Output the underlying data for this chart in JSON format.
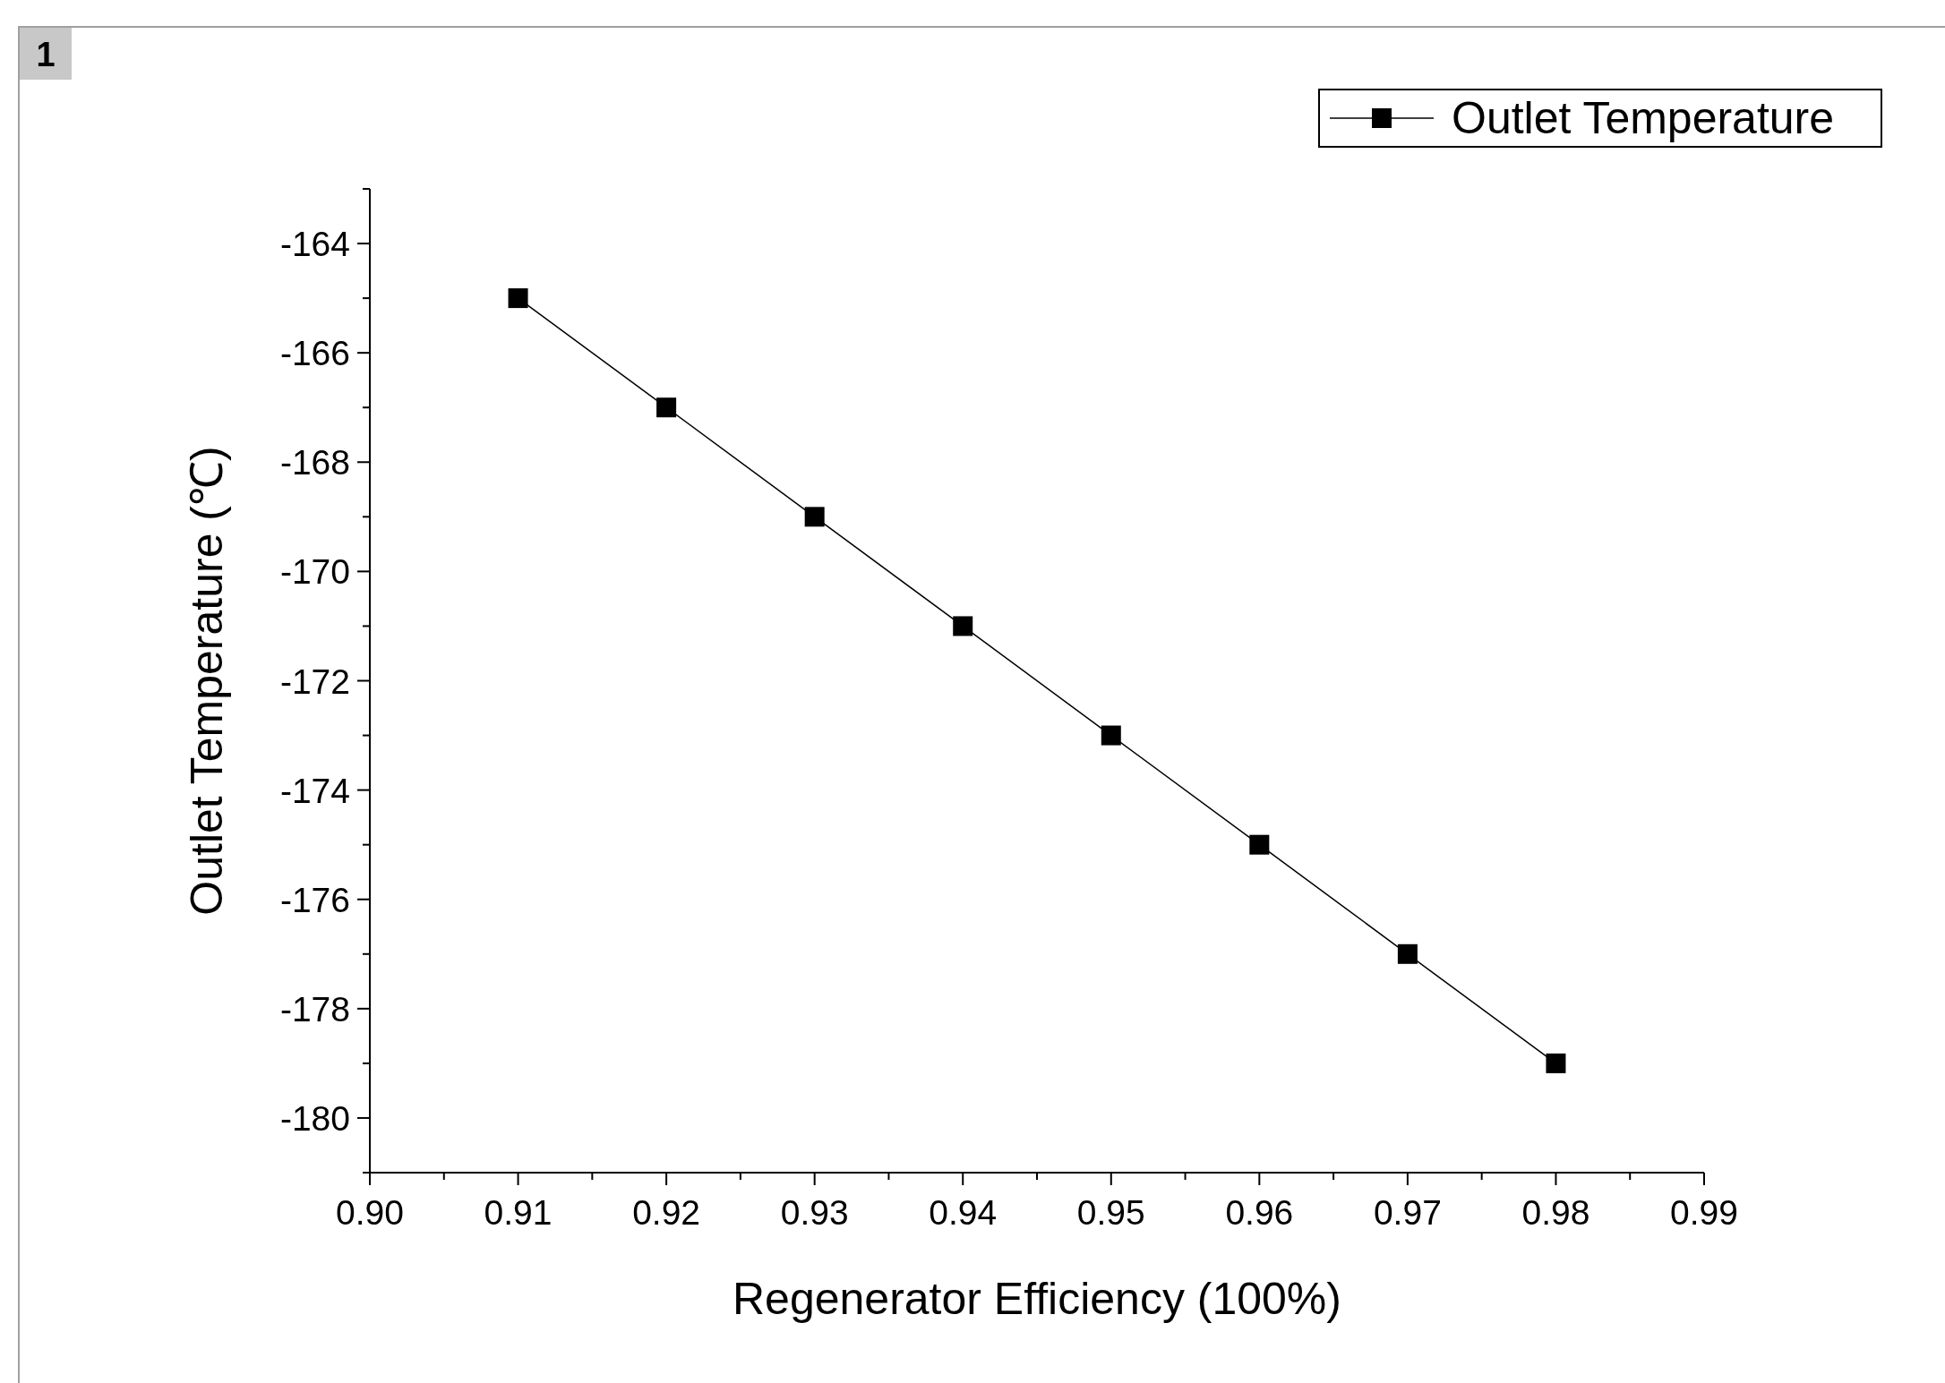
{
  "chart_data": {
    "type": "line",
    "xlabel": "Regenerator Efficiency (100%)",
    "ylabel": "Outlet Temperature (℃)",
    "annotations": [
      "1"
    ],
    "x": [
      0.91,
      0.92,
      0.93,
      0.94,
      0.95,
      0.96,
      0.97,
      0.98
    ],
    "series": [
      {
        "name": "Outlet Temperature",
        "color": "#000000",
        "values": [
          -165,
          -167,
          -169,
          -171,
          -173,
          -175,
          -177,
          -179
        ]
      }
    ],
    "xlim": [
      0.9,
      0.99
    ],
    "xticks": [
      {
        "value": 0.9,
        "label": "0.90"
      },
      {
        "value": 0.905,
        "label": null
      },
      {
        "value": 0.91,
        "label": "0.91"
      },
      {
        "value": 0.915,
        "label": null
      },
      {
        "value": 0.92,
        "label": "0.92"
      },
      {
        "value": 0.925,
        "label": null
      },
      {
        "value": 0.93,
        "label": "0.93"
      },
      {
        "value": 0.935,
        "label": null
      },
      {
        "value": 0.94,
        "label": "0.94"
      },
      {
        "value": 0.945,
        "label": null
      },
      {
        "value": 0.95,
        "label": "0.95"
      },
      {
        "value": 0.955,
        "label": null
      },
      {
        "value": 0.96,
        "label": "0.96"
      },
      {
        "value": 0.965,
        "label": null
      },
      {
        "value": 0.97,
        "label": "0.97"
      },
      {
        "value": 0.975,
        "label": null
      },
      {
        "value": 0.98,
        "label": "0.98"
      },
      {
        "value": 0.985,
        "label": null
      },
      {
        "value": 0.99,
        "label": "0.99"
      }
    ],
    "ylim": [
      -181,
      -163
    ],
    "yticks": [
      {
        "value": -181,
        "label": null
      },
      -180,
      {
        "value": -179,
        "label": null
      },
      -178,
      {
        "value": -177,
        "label": null
      },
      -176,
      {
        "value": -175,
        "label": null
      },
      -174,
      {
        "value": -173,
        "label": null
      },
      -172,
      {
        "value": -171,
        "label": null
      },
      -170,
      {
        "value": -169,
        "label": null
      },
      -168,
      {
        "value": -167,
        "label": null
      },
      -166,
      {
        "value": -165,
        "label": null
      },
      -164,
      {
        "value": -163,
        "label": null
      }
    ],
    "grid": false,
    "legend": "top right",
    "marker": "square",
    "line_style": "solid"
  }
}
